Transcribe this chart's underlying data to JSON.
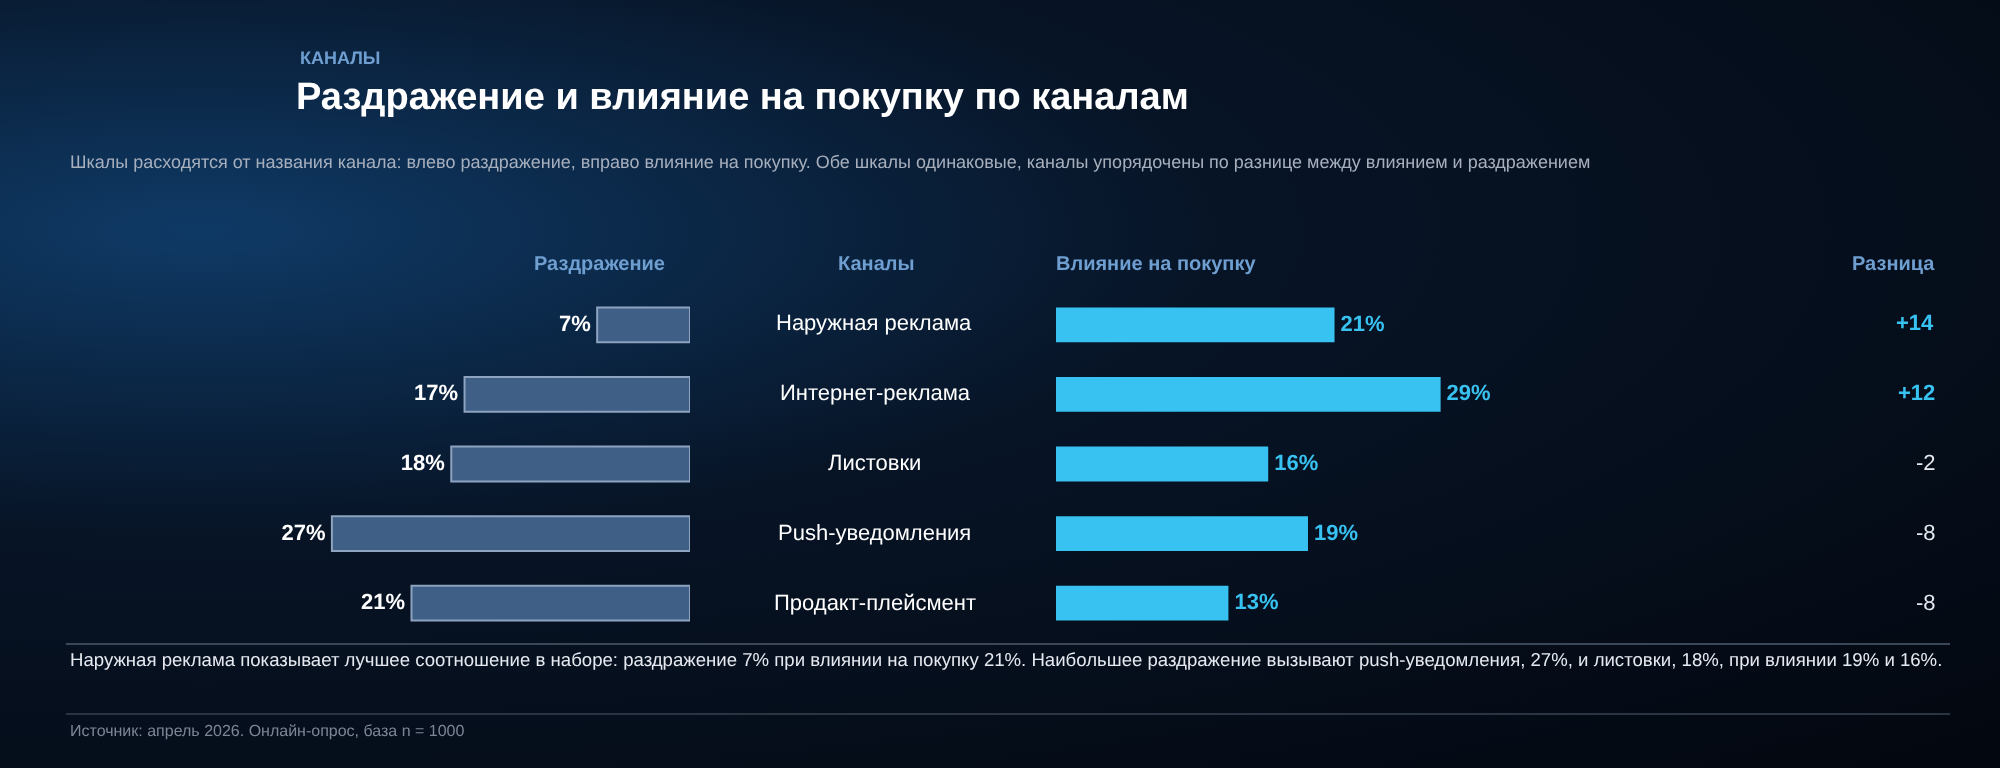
{
  "chart_data": [
    {
      "type": "bar",
      "orientation": "horizontal",
      "title": "Раздражение и влияние на покупку по каналам",
      "subtitle": "Шкалы расходятся от названия канала: влево раздражение, вправо влияние на покупку. Обе шкалы одинаковые, каналы упорядочены по разнице между влиянием и раздражением",
      "categories": [
        "Наружная реклама",
        "Интернет-реклама",
        "Листовки",
        "Push-уведомления",
        "Продакт-плейсмент"
      ],
      "series": [
        {
          "name": "Раздражение",
          "color": "#3f5f86",
          "values": [
            7,
            17,
            18,
            27,
            21
          ],
          "value_labels": [
            "7%",
            "17%",
            "18%",
            "27%",
            "21%"
          ]
        }
      ],
      "ylabel": "Каналы",
      "annotations": [
        "КАНАЛЫ"
      ],
      "legend": false
    },
    {
      "type": "bar",
      "orientation": "horizontal",
      "categories": [
        null,
        null,
        null,
        null,
        null
      ],
      "series": [
        {
          "name": "Влияние на покупку",
          "color": "#38c2f2",
          "values": [
            21,
            29,
            16,
            19,
            13
          ],
          "value_labels": [
            "21%",
            "29%",
            "16%",
            "19%",
            "13%"
          ]
        }
      ],
      "annotations": [
        "Разница",
        "+14",
        "+12",
        "-2",
        "-8",
        "-8",
        "Наружная реклама показывает лучшее соотношение в наборе: раздражение 7% при влиянии на покупку 21%. Наибольшее раздражение вызывают push-уведомления, 27%, и листовки, 18%, при влиянии 19% и 16%.",
        "Источник: апрель 2026. Онлайн-опрос, база n = 1000"
      ],
      "legend": false
    }
  ]
}
